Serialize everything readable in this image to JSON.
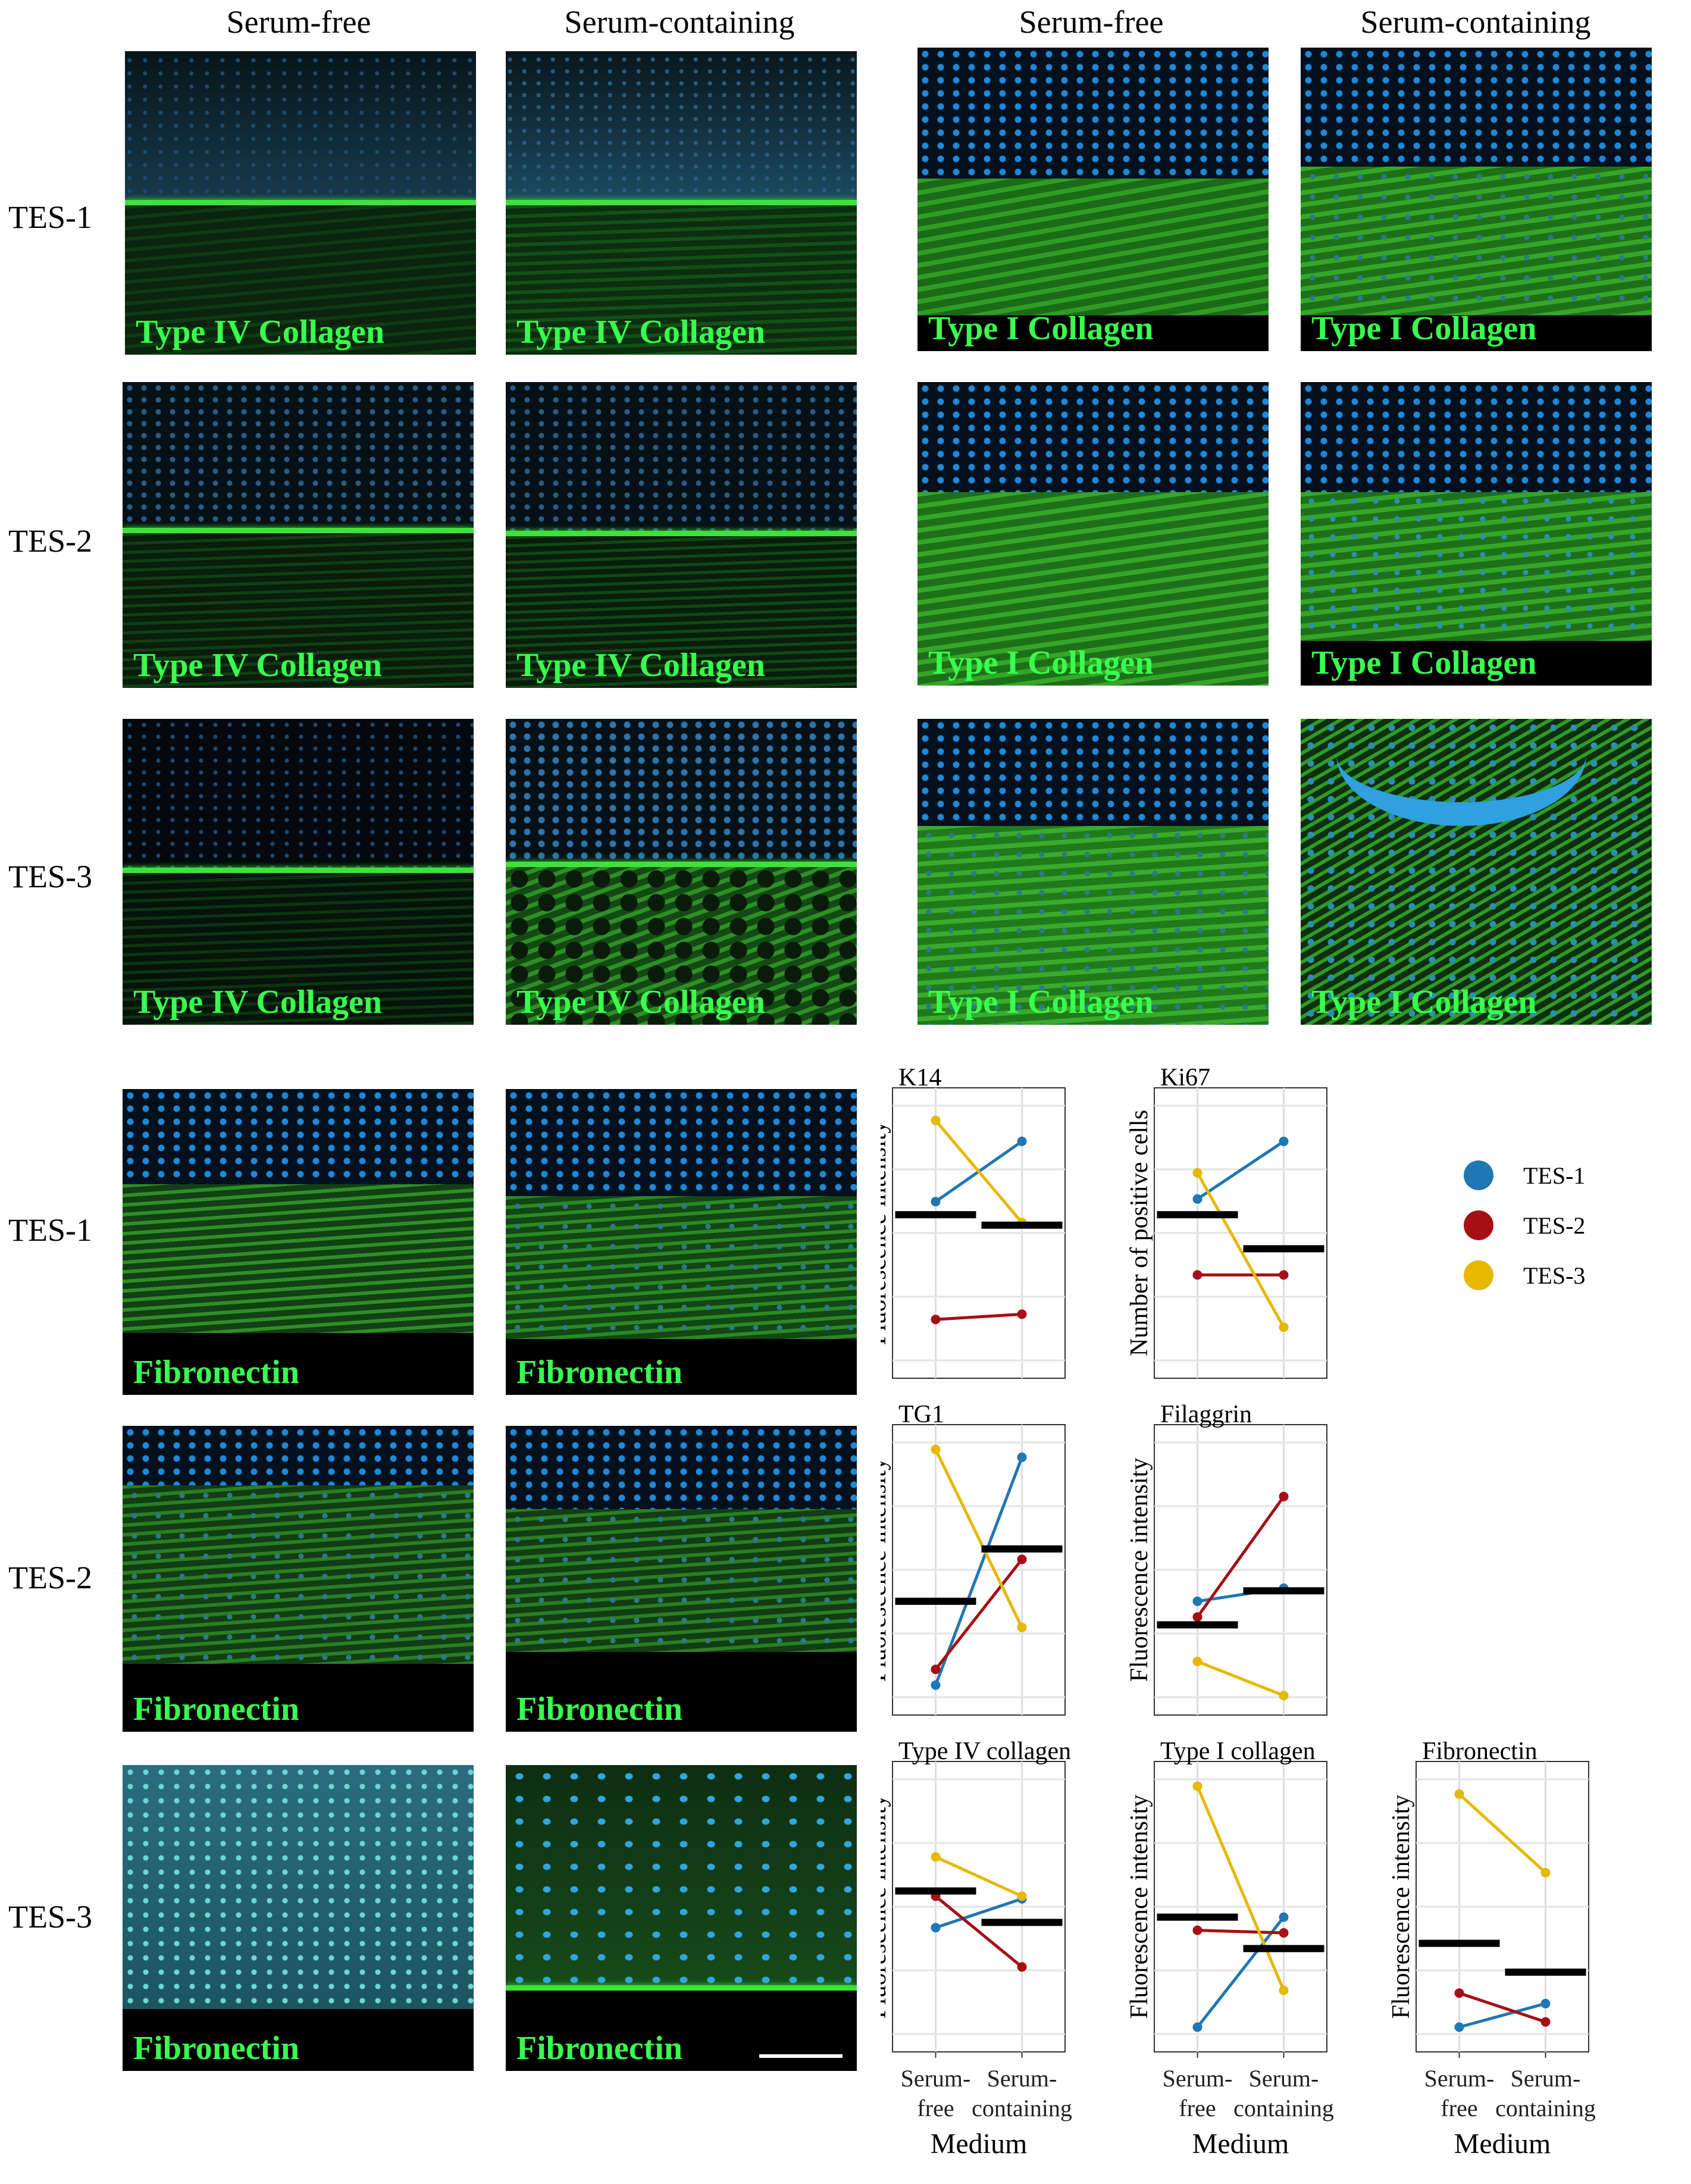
{
  "column_headers": {
    "left": [
      "Serum-free",
      "Serum-containing"
    ],
    "right": [
      "Serum-free",
      "Serum-containing"
    ]
  },
  "row_labels": {
    "top": [
      "TES-1",
      "TES-2",
      "TES-3"
    ],
    "bottom": [
      "TES-1",
      "TES-2",
      "TES-3"
    ]
  },
  "stains": {
    "type_iv": "Type IV Collagen",
    "type_i": "Type I Collagen",
    "fibronectin": "Fibronectin"
  },
  "legend": [
    {
      "label": "TES-1",
      "color": "#1f77b4"
    },
    {
      "label": "TES-2",
      "color": "#a50f15"
    },
    {
      "label": "TES-3",
      "color": "#e6b800"
    }
  ],
  "x_categories": [
    "Serum-\nfree",
    "Serum-\ncontaining"
  ],
  "x_axis_title": "Medium",
  "chart_data": [
    {
      "type": "line",
      "title": "K14",
      "ylabel": "Fluorescence intensity",
      "categories": [
        "Serum-free",
        "Serum-containing"
      ],
      "ylim": [
        0,
        1
      ],
      "series": [
        {
          "name": "TES-1",
          "values": [
            0.62,
            0.85
          ]
        },
        {
          "name": "TES-2",
          "values": [
            0.17,
            0.19
          ]
        },
        {
          "name": "TES-3",
          "values": [
            0.93,
            0.54
          ]
        }
      ],
      "means": [
        0.57,
        0.53
      ]
    },
    {
      "type": "line",
      "title": "Ki67",
      "ylabel": "Number of positive cells",
      "categories": [
        "Serum-free",
        "Serum-containing"
      ],
      "ylim": [
        0,
        1
      ],
      "series": [
        {
          "name": "TES-1",
          "values": [
            0.63,
            0.85
          ]
        },
        {
          "name": "TES-2",
          "values": [
            0.34,
            0.34
          ]
        },
        {
          "name": "TES-3",
          "values": [
            0.73,
            0.14
          ]
        }
      ],
      "means": [
        0.57,
        0.44
      ]
    },
    {
      "type": "line",
      "title": "TG1",
      "ylabel": "Fluorescence intensity",
      "categories": [
        "Serum-free",
        "Serum-containing"
      ],
      "ylim": [
        0,
        1
      ],
      "series": [
        {
          "name": "TES-1",
          "values": [
            0.06,
            0.93
          ]
        },
        {
          "name": "TES-2",
          "values": [
            0.12,
            0.54
          ]
        },
        {
          "name": "TES-3",
          "values": [
            0.96,
            0.28
          ]
        }
      ],
      "means": [
        0.38,
        0.58
      ]
    },
    {
      "type": "line",
      "title": "Filaggrin",
      "ylabel": "Fluorescence intensity",
      "categories": [
        "Serum-free",
        "Serum-containing"
      ],
      "ylim": [
        0,
        1
      ],
      "series": [
        {
          "name": "TES-1",
          "values": [
            0.38,
            0.43
          ]
        },
        {
          "name": "TES-2",
          "values": [
            0.32,
            0.78
          ]
        },
        {
          "name": "TES-3",
          "values": [
            0.15,
            0.02
          ]
        }
      ],
      "means": [
        0.29,
        0.42
      ]
    },
    {
      "type": "line",
      "title": "Type IV collagen",
      "ylabel": "Fluorescence intensity",
      "categories": [
        "Serum-free",
        "Serum-containing"
      ],
      "ylim": [
        0,
        1
      ],
      "series": [
        {
          "name": "TES-1",
          "values": [
            0.42,
            0.53
          ]
        },
        {
          "name": "TES-2",
          "values": [
            0.54,
            0.27
          ]
        },
        {
          "name": "TES-3",
          "values": [
            0.69,
            0.54
          ]
        }
      ],
      "means": [
        0.56,
        0.44
      ]
    },
    {
      "type": "line",
      "title": "Type I collagen",
      "ylabel": "Fluorescence intensity",
      "categories": [
        "Serum-free",
        "Serum-containing"
      ],
      "ylim": [
        0,
        1
      ],
      "series": [
        {
          "name": "TES-1",
          "values": [
            0.04,
            0.46
          ]
        },
        {
          "name": "TES-2",
          "values": [
            0.41,
            0.4
          ]
        },
        {
          "name": "TES-3",
          "values": [
            0.96,
            0.18
          ]
        }
      ],
      "means": [
        0.46,
        0.34
      ]
    },
    {
      "type": "line",
      "title": "Fibronectin",
      "ylabel": "Fluorescence intensity",
      "categories": [
        "Serum-free",
        "Serum-containing"
      ],
      "ylim": [
        0,
        1
      ],
      "series": [
        {
          "name": "TES-1",
          "values": [
            0.04,
            0.13
          ]
        },
        {
          "name": "TES-2",
          "values": [
            0.17,
            0.06
          ]
        },
        {
          "name": "TES-3",
          "values": [
            0.93,
            0.63
          ]
        }
      ],
      "means": [
        0.36,
        0.25
      ]
    }
  ]
}
